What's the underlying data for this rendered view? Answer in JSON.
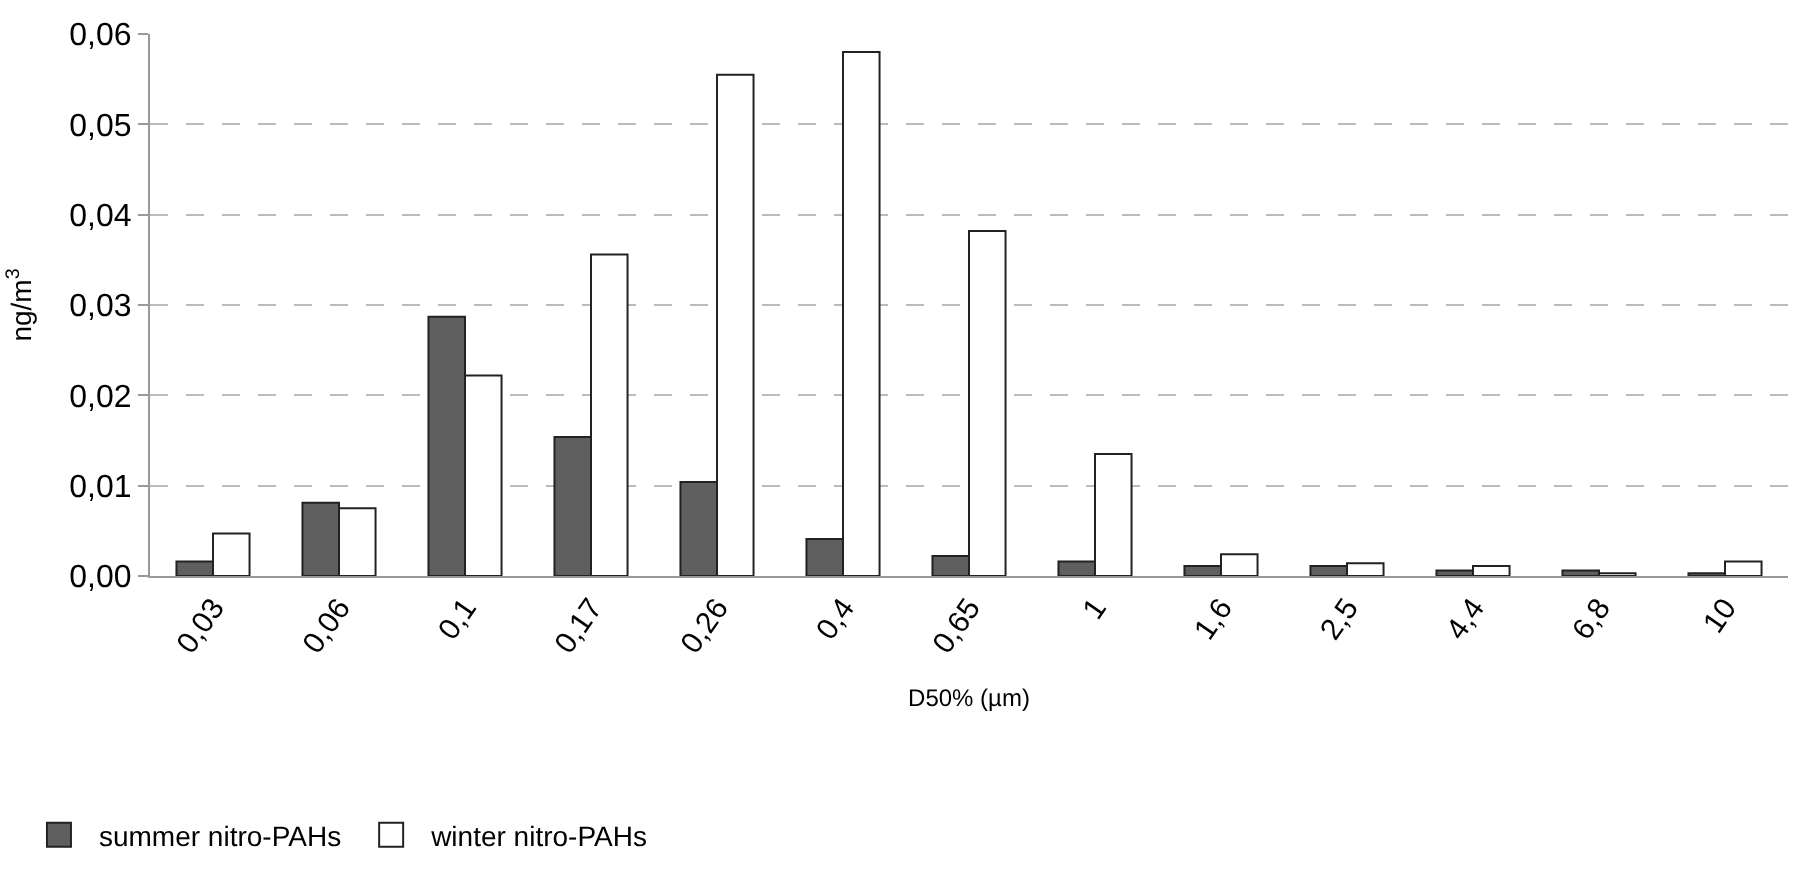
{
  "chart_data": {
    "type": "bar",
    "xlabel": "D50% (µm)",
    "ylabel": "ng/m$^{3}$",
    "categories": [
      "0,03",
      "0,06",
      "0,1",
      "0,17",
      "0,26",
      "0,4",
      "0,65",
      "1",
      "1,6",
      "2,5",
      "4,4",
      "6,8",
      "10"
    ],
    "series": [
      {
        "name": "summer nitro-PAHs",
        "color": "#5f5f5f",
        "values": [
          0.0016,
          0.0081,
          0.0287,
          0.0154,
          0.0104,
          0.0041,
          0.0022,
          0.0016,
          0.0011,
          0.0011,
          0.0006,
          0.0006,
          0.0003
        ]
      },
      {
        "name": "winter nitro-PAHs",
        "color": "#ffffff",
        "values": [
          0.0047,
          0.0075,
          0.0222,
          0.0356,
          0.0555,
          0.058,
          0.0382,
          0.0135,
          0.0024,
          0.0014,
          0.0011,
          0.0003,
          0.0016
        ]
      }
    ],
    "ylim": [
      0,
      0.06
    ],
    "yticks": [
      {
        "value": 0,
        "label": "0,00"
      },
      {
        "value": 0.01,
        "label": "0,01"
      },
      {
        "value": 0.02,
        "label": "0,02"
      },
      {
        "value": 0.03,
        "label": "0,03"
      },
      {
        "value": 0.04,
        "label": "0,04"
      },
      {
        "value": 0.05,
        "label": "0,05"
      },
      {
        "value": 0.06,
        "label": "0,06"
      }
    ],
    "grid": "y",
    "legend": "bottom left"
  }
}
